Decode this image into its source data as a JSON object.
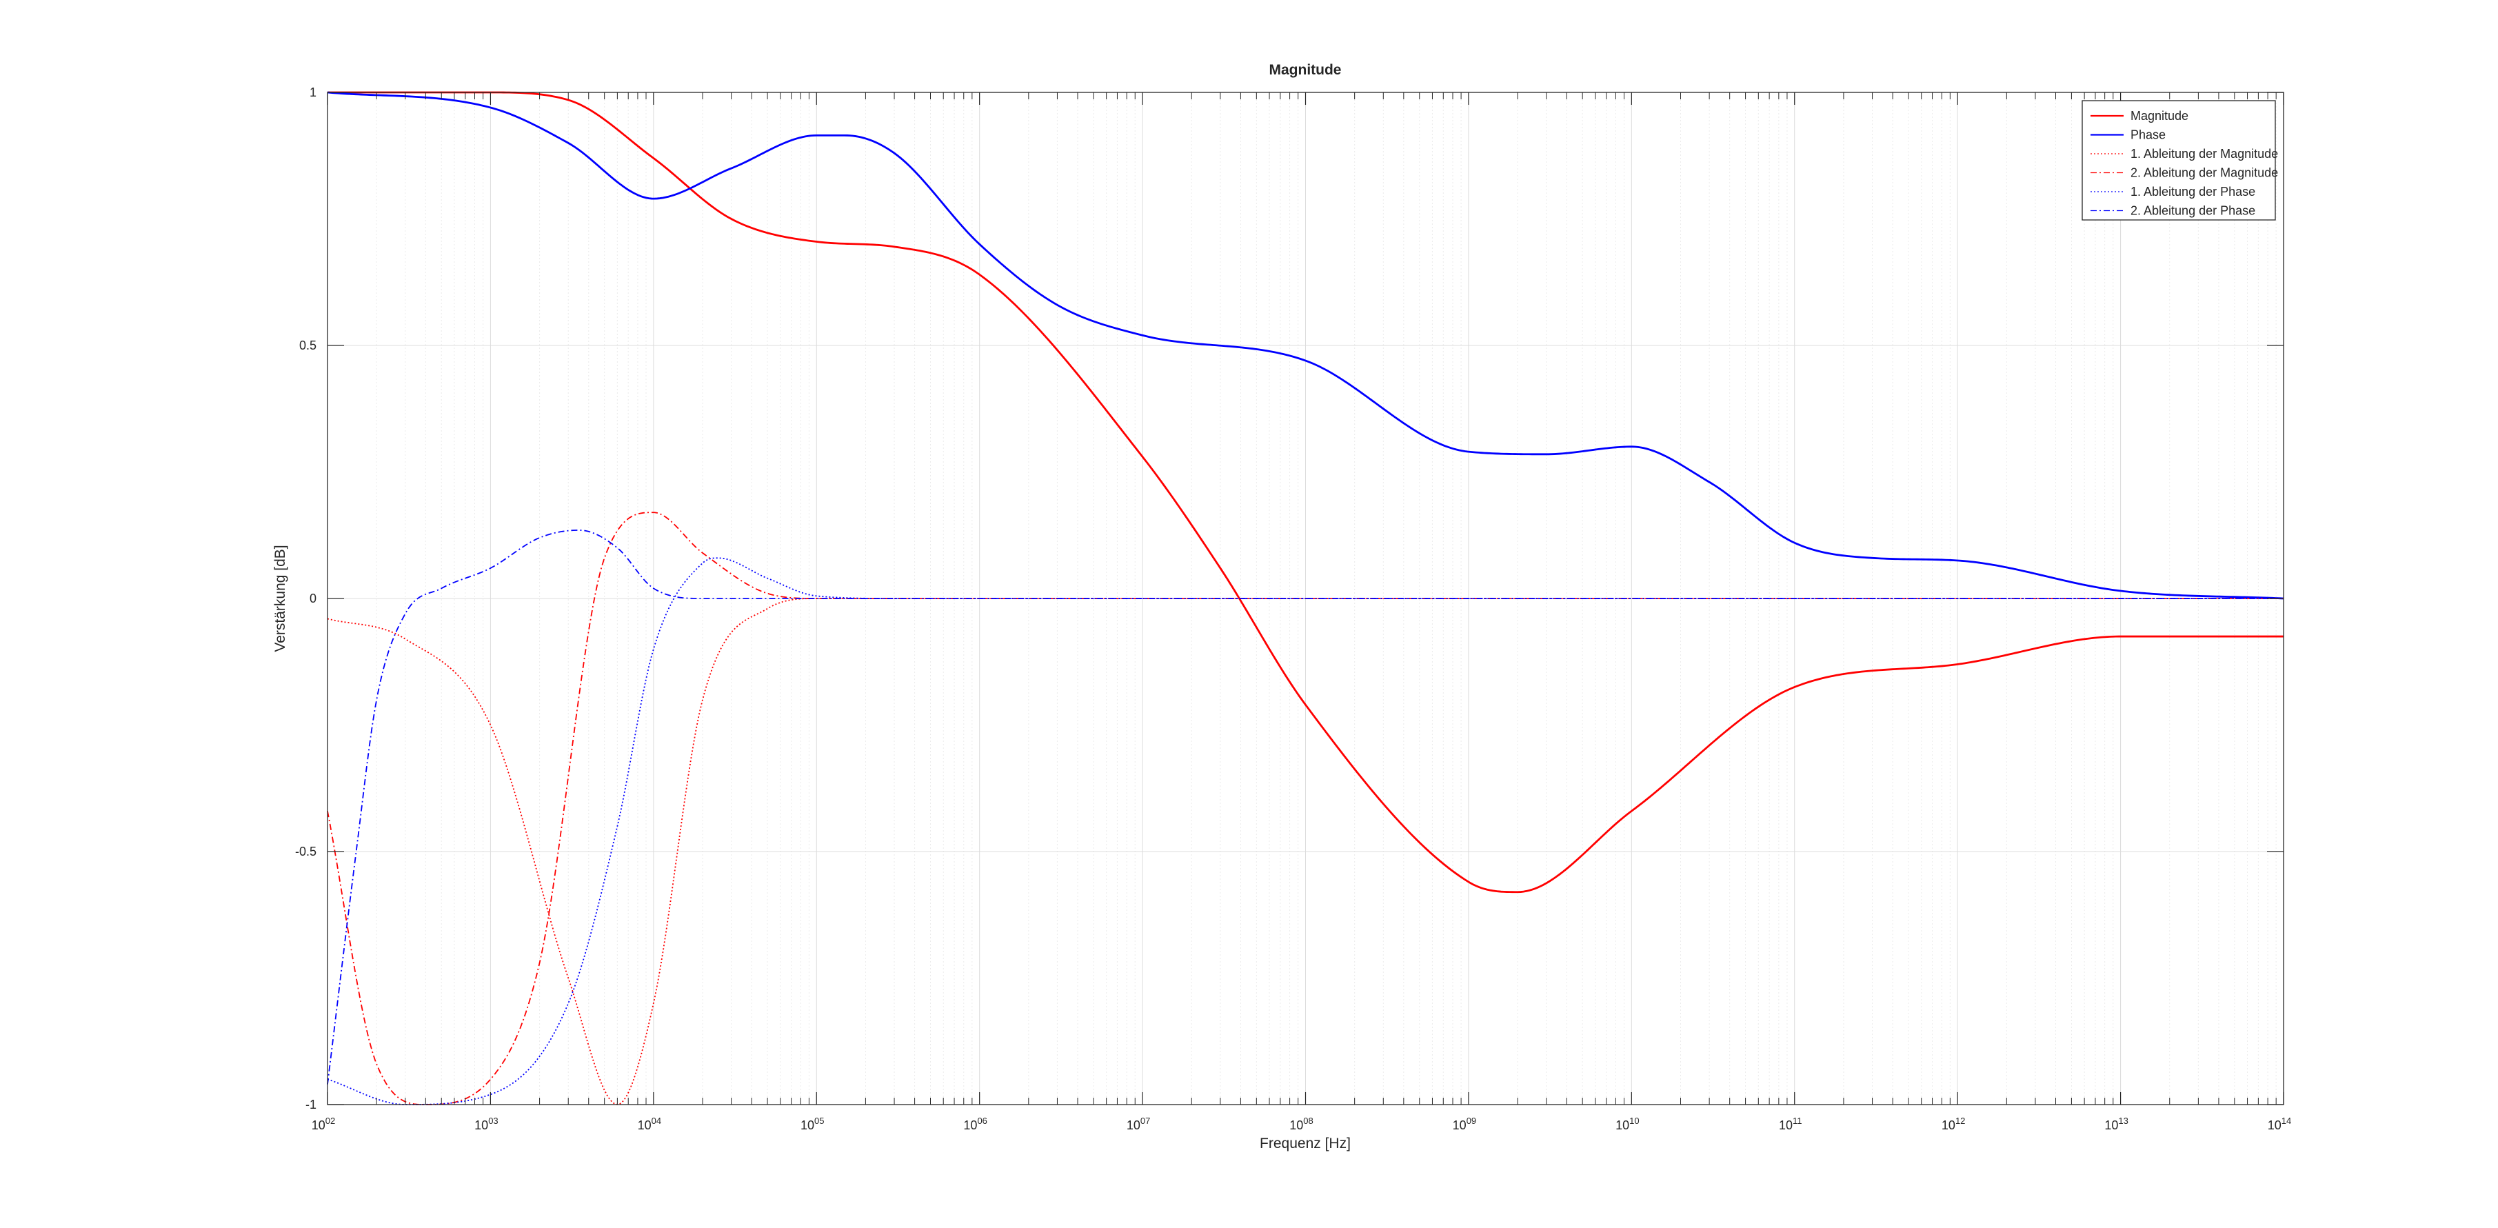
{
  "chart_data": {
    "type": "line",
    "title": "Magnitude",
    "xlabel": "Frequenz [Hz]",
    "ylabel": "Verstärkung [dB]",
    "xscale": "log",
    "xlim": [
      100,
      100000000000000
    ],
    "ylim": [
      -1,
      1
    ],
    "x_ticks": [
      {
        "base": "10",
        "exp": "02"
      },
      {
        "base": "10",
        "exp": "03"
      },
      {
        "base": "10",
        "exp": "04"
      },
      {
        "base": "10",
        "exp": "05"
      },
      {
        "base": "10",
        "exp": "06"
      },
      {
        "base": "10",
        "exp": "07"
      },
      {
        "base": "10",
        "exp": "08"
      },
      {
        "base": "10",
        "exp": "09"
      },
      {
        "base": "10",
        "exp": "10"
      },
      {
        "base": "10",
        "exp": "11"
      },
      {
        "base": "10",
        "exp": "12"
      },
      {
        "base": "10",
        "exp": "13"
      },
      {
        "base": "10",
        "exp": "14"
      }
    ],
    "y_ticks": [
      "-1",
      "-0.5",
      "0",
      "0.5",
      "1"
    ],
    "y_tick_values": [
      -1,
      -0.5,
      0,
      0.5,
      1
    ],
    "grid": true,
    "legend_position": "top-right",
    "series": [
      {
        "name": "Magnitude",
        "color": "#ff0000",
        "style": "solid",
        "x": [
          100,
          1000,
          3000,
          10000,
          30000,
          100000,
          300000,
          1000000,
          10000000,
          30000000,
          100000000,
          1000000000,
          2000000000,
          10000000000,
          100000000000,
          1000000000000,
          10000000000000,
          100000000000000
        ],
        "y": [
          1.0,
          1.0,
          0.985,
          0.87,
          0.75,
          0.705,
          0.695,
          0.64,
          0.28,
          0.06,
          -0.21,
          -0.56,
          -0.58,
          -0.42,
          -0.175,
          -0.13,
          -0.075,
          -0.075
        ]
      },
      {
        "name": "Phase",
        "color": "#0000ff",
        "style": "solid",
        "x": [
          100,
          1000,
          3000,
          10000,
          30000,
          100000,
          150000,
          300000,
          1000000,
          3000000,
          10000000,
          100000000,
          1000000000,
          3000000000,
          10000000000,
          30000000000,
          100000000000,
          300000000000,
          1000000000000,
          10000000000000,
          100000000000000
        ],
        "y": [
          1.0,
          0.97,
          0.9,
          0.79,
          0.85,
          0.915,
          0.915,
          0.88,
          0.7,
          0.58,
          0.52,
          0.47,
          0.29,
          0.285,
          0.3,
          0.23,
          0.11,
          0.08,
          0.075,
          0.015,
          0.0
        ]
      },
      {
        "name": "1. Ableitung der Magnitude",
        "color": "#ff0000",
        "style": "dotted",
        "x": [
          100,
          300,
          1000,
          3000,
          6000,
          10000,
          20000,
          50000,
          100000,
          300000,
          100000000000000
        ],
        "y": [
          -0.04,
          -0.08,
          -0.25,
          -0.75,
          -1.0,
          -0.8,
          -0.2,
          -0.02,
          0.0,
          0.0,
          0.0
        ]
      },
      {
        "name": "2. Ableitung der Magnitude",
        "color": "#ff0000",
        "style": "dashdot",
        "x": [
          100,
          200,
          400,
          1000,
          2000,
          5000,
          10000,
          20000,
          50000,
          100000,
          300000,
          100000000000000
        ],
        "y": [
          -0.42,
          -0.92,
          -1.0,
          -0.95,
          -0.72,
          0.08,
          0.17,
          0.09,
          0.01,
          0.0,
          0.0,
          0.0
        ]
      },
      {
        "name": "1. Ableitung der Phase",
        "color": "#0000ff",
        "style": "dotted",
        "x": [
          100,
          300,
          1000,
          3000,
          6000,
          10000,
          20000,
          25000,
          50000,
          100000,
          300000,
          100000000000000
        ],
        "y": [
          -0.95,
          -1.0,
          -0.98,
          -0.8,
          -0.45,
          -0.1,
          0.07,
          0.08,
          0.04,
          0.005,
          0.0,
          0.0
        ]
      },
      {
        "name": "2. Ableitung der Phase",
        "color": "#0000ff",
        "style": "dashdot",
        "x": [
          100,
          150,
          200,
          300,
          500,
          1000,
          2000,
          3500,
          6000,
          10000,
          20000,
          100000,
          100000000000000
        ],
        "y": [
          -0.96,
          -0.5,
          -0.2,
          -0.03,
          0.02,
          0.06,
          0.12,
          0.135,
          0.1,
          0.02,
          0.0,
          0.0,
          0.0
        ]
      }
    ]
  }
}
